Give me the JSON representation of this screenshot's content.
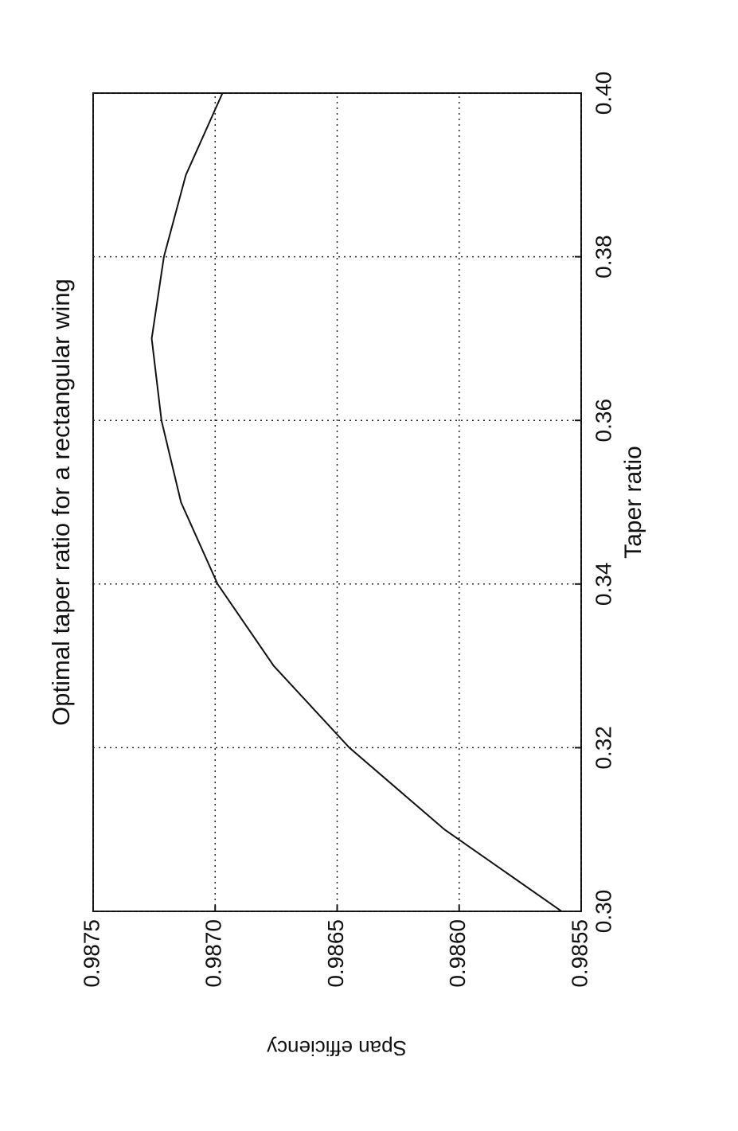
{
  "chart_data": {
    "type": "line",
    "title": "Optimal taper ratio for a rectangular wing",
    "x_label": "Taper ratio",
    "y_label": "Span efficiency",
    "x": [
      0.3,
      0.31,
      0.32,
      0.33,
      0.34,
      0.35,
      0.36,
      0.37,
      0.38,
      0.39,
      0.4
    ],
    "series": [
      {
        "name": "Span efficiency",
        "color": "#111111",
        "values": [
          0.98558,
          0.98606,
          0.98645,
          0.98676,
          0.98699,
          0.98714,
          0.98722,
          0.98726,
          0.98721,
          0.98712,
          0.98697
        ]
      }
    ],
    "xlim": [
      0.3,
      0.4
    ],
    "ylim": [
      0.9855,
      0.9875
    ],
    "xticks": [
      {
        "value": 0.3,
        "label": "0.30"
      },
      0.32,
      0.34,
      0.36,
      0.38,
      {
        "value": 0.4,
        "label": "0.40"
      }
    ],
    "yticks": [
      0.9855,
      {
        "value": 0.986,
        "label": "0.9860"
      },
      0.9865,
      {
        "value": 0.987,
        "label": "0.9870"
      },
      0.9875
    ],
    "grid": true
  }
}
